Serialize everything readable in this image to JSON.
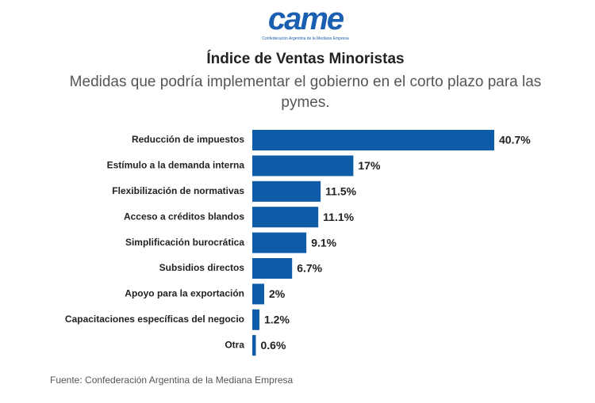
{
  "logo": {
    "name": "came",
    "subtitle": "Confederación Argentina de la Mediana Empresa"
  },
  "chart_data": {
    "type": "bar",
    "orientation": "horizontal",
    "title": "Índice de Ventas Minoristas",
    "subtitle": "Medidas que podría implementar el gobierno en el corto plazo para las pymes.",
    "categories": [
      "Reducción de impuestos",
      "Estímulo a la demanda interna",
      "Flexibilización de normativas",
      "Acceso a créditos blandos",
      "Simplificación burocrática",
      "Subsidios directos",
      "Apoyo para la exportación",
      "Capacitaciones específicas del negocio",
      "Otra"
    ],
    "values": [
      40.7,
      17,
      11.5,
      11.1,
      9.1,
      6.7,
      2,
      1.2,
      0.6
    ],
    "value_labels": [
      "40.7%",
      "17%",
      "11.5%",
      "11.1%",
      "9.1%",
      "6.7%",
      "2%",
      "1.2%",
      "0.6%"
    ],
    "color": "#0e5ca8",
    "source": "Fuente: Confederación Argentina de la Mediana Empresa"
  }
}
